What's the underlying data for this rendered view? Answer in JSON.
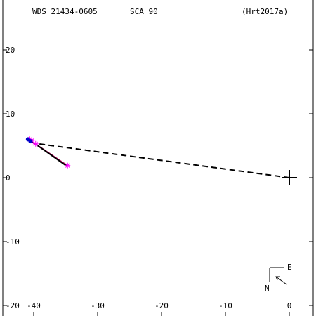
{
  "chart_data": {
    "type": "scatter",
    "header": {
      "left": "WDS 21434-0605",
      "center": "SCA  90",
      "right": "(Hrt2017a)"
    },
    "x_axis": {
      "range": [
        -45,
        4
      ],
      "reversed": false,
      "ticks": [
        -40,
        -30,
        -20,
        -10,
        0
      ],
      "tick_labels": [
        "-40",
        "-30",
        "-20",
        "-10",
        "0"
      ]
    },
    "y_axis": {
      "range": [
        -22,
        26
      ],
      "ticks": [
        20,
        10,
        0,
        -10,
        -20
      ],
      "tick_labels": [
        "20",
        "10",
        "0",
        "-10",
        "-20"
      ]
    },
    "primary": {
      "x": 0,
      "y": 0,
      "marker": "plus"
    },
    "dashed_line": {
      "from": [
        0,
        0
      ],
      "to": [
        -40,
        5.4
      ]
    },
    "orbit_line": {
      "x": [
        -41,
        -34.5
      ],
      "y": [
        6.2,
        1.8
      ],
      "color": "#cc0066"
    },
    "fit_line": {
      "x": [
        -40.2,
        -34.8
      ],
      "y": [
        5.6,
        1.8
      ],
      "color": "#000000"
    },
    "observations": [
      {
        "x": -40.6,
        "y": 6.0,
        "marker": "asterisk",
        "color": "#ff00ff"
      },
      {
        "x": -40.3,
        "y": 5.8,
        "marker": "asterisk",
        "color": "#ff00ff"
      },
      {
        "x": -39.7,
        "y": 5.3,
        "marker": "asterisk",
        "color": "#ff00ff"
      },
      {
        "x": -34.7,
        "y": 1.9,
        "marker": "asterisk",
        "color": "#ff00ff"
      },
      {
        "x": -40.9,
        "y": 6.0,
        "marker": "dot",
        "color": "#0000cc"
      },
      {
        "x": -40.5,
        "y": 5.7,
        "marker": "dot",
        "color": "#0000cc"
      }
    ],
    "compass": {
      "east_label": "E",
      "north_label": "N"
    }
  }
}
